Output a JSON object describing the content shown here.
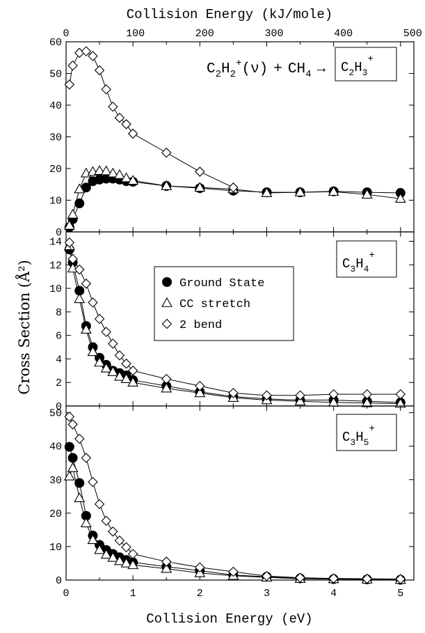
{
  "labels": {
    "top_axis_title": "Collision Energy (kJ/mole)",
    "bottom_axis_title": "Collision Energy (eV)",
    "y_axis_title": "Cross Section (Å²)",
    "reaction": {
      "r1": "C",
      "r1_sub": "2",
      "r2": "H",
      "r2_sub": "2",
      "r2_sup": "+",
      "state": "(ν)",
      "plus": "+",
      "r3": "CH",
      "r3_sub": "4",
      "arrow": "→"
    }
  },
  "chart_data": [
    {
      "type": "line",
      "panel": "top",
      "product": {
        "main1": "C",
        "sub1": "2",
        "main2": "H",
        "sub2": "3",
        "sup": "+"
      },
      "xlabel": "Collision Energy (eV)",
      "xlim": [
        0,
        5.2
      ],
      "ylim": [
        0,
        60
      ],
      "yticks": [
        0,
        10,
        20,
        30,
        40,
        50,
        60
      ],
      "x2label": "Collision Energy (kJ/mole)",
      "x2ticks": [
        0,
        100,
        200,
        300,
        400,
        500
      ],
      "xticks": [
        0,
        1,
        2,
        3,
        4,
        5
      ],
      "series": [
        {
          "name": "Ground State",
          "marker": "circle-filled",
          "x": [
            0.05,
            0.1,
            0.2,
            0.3,
            0.4,
            0.5,
            0.6,
            0.7,
            0.8,
            0.9,
            1.0,
            1.5,
            2.0,
            2.5,
            3.0,
            3.5,
            4.0,
            4.5,
            5.0
          ],
          "y": [
            1.5,
            4,
            9,
            14,
            16,
            16.5,
            16.8,
            16.8,
            16.5,
            16,
            15.8,
            14.5,
            13.8,
            13,
            12.5,
            12.5,
            12.8,
            12.5,
            12.3
          ]
        },
        {
          "name": "CC stretch",
          "marker": "triangle-open",
          "x": [
            0.05,
            0.1,
            0.2,
            0.3,
            0.4,
            0.5,
            0.6,
            0.7,
            0.8,
            0.9,
            1.0,
            1.5,
            2.0,
            2.5,
            3.0,
            3.5,
            4.0,
            4.5,
            5.0
          ],
          "y": [
            2,
            5.5,
            13.5,
            18.5,
            19,
            19.3,
            19.2,
            18.5,
            18,
            17,
            16.2,
            14.5,
            14,
            13.5,
            12.3,
            12.5,
            12.7,
            11.8,
            10.5
          ]
        },
        {
          "name": "2 bend",
          "marker": "diamond-open",
          "x": [
            0.05,
            0.1,
            0.2,
            0.3,
            0.4,
            0.5,
            0.6,
            0.7,
            0.8,
            0.9,
            1.0,
            1.5,
            2.0,
            2.5
          ],
          "y": [
            46.5,
            52.5,
            56.5,
            57,
            55.5,
            51,
            45,
            39.5,
            36,
            34,
            31,
            25,
            19,
            14
          ]
        }
      ]
    },
    {
      "type": "line",
      "panel": "middle",
      "product": {
        "main1": "C",
        "sub1": "3",
        "main2": "H",
        "sub2": "4",
        "sup": "+"
      },
      "xlim": [
        0,
        5.2
      ],
      "ylim": [
        0,
        14.8
      ],
      "yticks": [
        0,
        2,
        4,
        6,
        8,
        10,
        12,
        14
      ],
      "legend": {
        "position": "center-left"
      },
      "series": [
        {
          "name": "Ground State",
          "marker": "circle-filled",
          "x": [
            0.05,
            0.1,
            0.2,
            0.3,
            0.4,
            0.5,
            0.6,
            0.7,
            0.8,
            0.9,
            1.0,
            1.5,
            2.0,
            2.5,
            3.0,
            3.5,
            4.0,
            4.5,
            5.0
          ],
          "y": [
            13.3,
            12.2,
            9.8,
            6.8,
            5.0,
            4.1,
            3.5,
            3.0,
            2.8,
            2.6,
            2.2,
            1.7,
            1.2,
            0.8,
            0.6,
            0.5,
            0.5,
            0.4,
            0.3
          ]
        },
        {
          "name": "CC stretch",
          "marker": "triangle-open",
          "x": [
            0.05,
            0.1,
            0.2,
            0.3,
            0.4,
            0.5,
            0.6,
            0.7,
            0.8,
            0.9,
            1.0,
            1.5,
            2.0,
            2.5,
            3.0,
            3.5,
            4.0,
            4.5,
            5.0
          ],
          "y": [
            13.6,
            11.7,
            9.1,
            6.5,
            4.6,
            3.7,
            3.2,
            2.9,
            2.5,
            2.3,
            2.0,
            1.5,
            1.1,
            0.7,
            0.5,
            0.4,
            0.3,
            0.25,
            0.2
          ]
        },
        {
          "name": "2 bend",
          "marker": "diamond-open",
          "x": [
            0.05,
            0.1,
            0.2,
            0.3,
            0.4,
            0.5,
            0.6,
            0.7,
            0.8,
            0.9,
            1.0,
            1.5,
            2.0,
            2.5,
            3.0,
            3.5,
            4.0,
            4.5,
            5.0
          ],
          "y": [
            13.9,
            12.5,
            11.6,
            10.4,
            8.8,
            7.4,
            6.3,
            5.3,
            4.3,
            3.6,
            3.0,
            2.3,
            1.7,
            1.1,
            0.9,
            0.9,
            1.0,
            1.0,
            1.0
          ]
        }
      ]
    },
    {
      "type": "line",
      "panel": "bottom",
      "product": {
        "main1": "C",
        "sub1": "3",
        "main2": "H",
        "sub2": "5",
        "sup": "+"
      },
      "xlim": [
        0,
        5.2
      ],
      "ylim": [
        0,
        52
      ],
      "yticks": [
        0,
        10,
        20,
        30,
        40,
        50
      ],
      "series": [
        {
          "name": "Ground State",
          "marker": "circle-filled",
          "x": [
            0.05,
            0.1,
            0.2,
            0.3,
            0.4,
            0.5,
            0.6,
            0.7,
            0.8,
            0.9,
            1.0,
            1.5,
            2.0,
            2.5,
            3.0,
            3.5,
            4.0,
            4.5,
            5.0
          ],
          "y": [
            39.8,
            36.5,
            29,
            19.2,
            13.3,
            10.5,
            9,
            7.8,
            6.8,
            6,
            5.3,
            4,
            2.8,
            1.5,
            1,
            0.5,
            0.3,
            0.2,
            0.1
          ]
        },
        {
          "name": "CC stretch",
          "marker": "triangle-open",
          "x": [
            0.05,
            0.1,
            0.2,
            0.3,
            0.4,
            0.5,
            0.6,
            0.7,
            0.8,
            0.9,
            1.0,
            1.5,
            2.0,
            2.5,
            3.0,
            3.5,
            4.0,
            4.5,
            5.0
          ],
          "y": [
            31,
            33.5,
            24.5,
            17,
            12,
            9,
            7.6,
            6.7,
            5.7,
            5,
            4.5,
            3.4,
            2.1,
            1.3,
            0.8,
            0.4,
            0.3,
            0.2,
            0.1
          ]
        },
        {
          "name": "2 bend",
          "marker": "diamond-open",
          "x": [
            0.05,
            0.1,
            0.2,
            0.3,
            0.4,
            0.5,
            0.6,
            0.7,
            0.8,
            0.9,
            1.0,
            1.5,
            2.0,
            2.5,
            3.0,
            3.5,
            4.0,
            4.5,
            5.0
          ],
          "y": [
            48.8,
            46.5,
            42.2,
            36.5,
            29.3,
            22.7,
            17.7,
            14.5,
            11.8,
            9.8,
            7.8,
            5.5,
            3.8,
            2.5,
            1.2,
            0.7,
            0.5,
            0.4,
            0.3
          ]
        }
      ]
    }
  ]
}
